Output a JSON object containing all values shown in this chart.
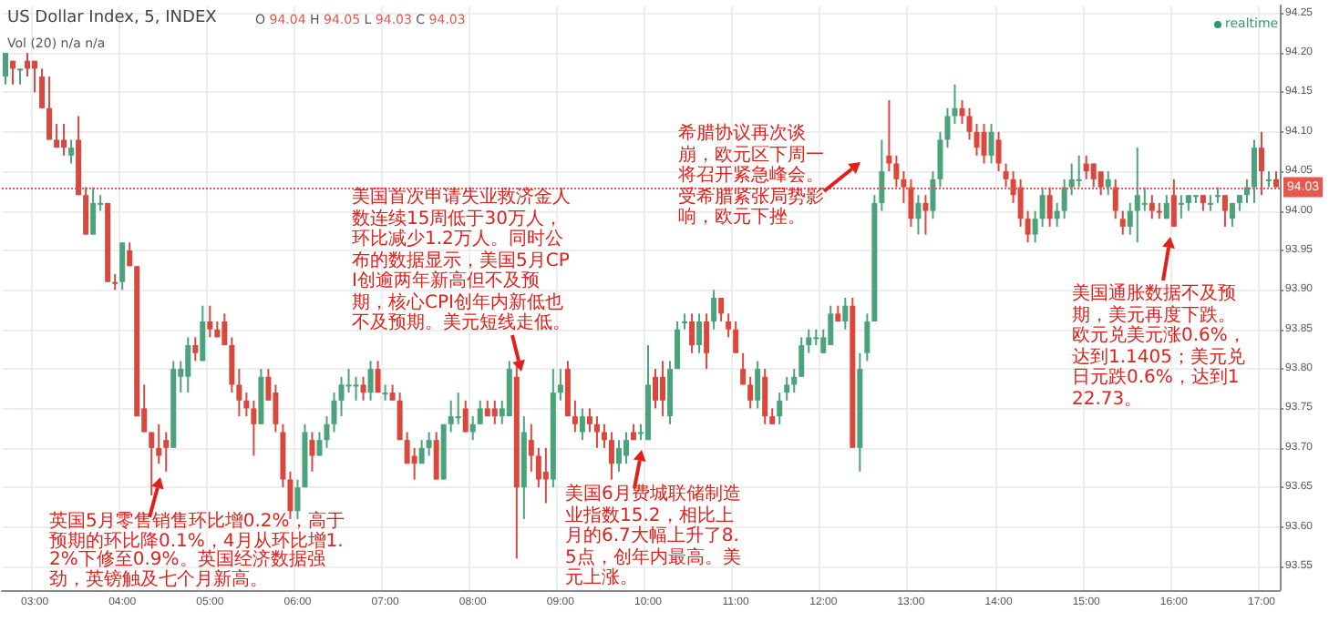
{
  "chart_data": {
    "type": "candlestick",
    "title": "US Dollar Index, 5, INDEX",
    "subtitle": "O 94.04 H 94.05 L 94.03 C 94.03",
    "annotations": [
      "Vol (20)  n/a  n/a",
      "realtime",
      "英国5月零售销售环比增0.2%，高于预期的环比降0.1%，4月从环比增1.2%下修至0.9%。英国经济数据强劲，英镑触及七个月新高。",
      "美国首次申请失业救济金人数连续15周低于30万人，环比减少1.2万人。同时公布的数据显示，美国5月CPI创逾两年新高但不及预期，核心CPI创年内新低也不及预期。美元短线走低。",
      "美国6月费城联储制造业指数15.2，相比上月的6.7大幅上升了8.5点，创年内最高。美元上涨。",
      "希腊协议再次谈崩，欧元区下周一将召开紧急峰会。受希腊紧张局势影响，欧元下挫。",
      "美国通胀数据不及预期，美元再度下跌。欧元兑美元涨0.6%，达到1.1405；美元兑日元跌0.6%，达到122.73。"
    ],
    "categories": [
      null,
      null,
      null,
      null,
      "03:00",
      null,
      null,
      null,
      null,
      null,
      null,
      null,
      null,
      null,
      null,
      null,
      "04:00",
      null,
      null,
      null,
      null,
      null,
      null,
      null,
      null,
      null,
      null,
      null,
      "05:00",
      null,
      null,
      null,
      null,
      null,
      null,
      null,
      null,
      null,
      null,
      null,
      "06:00",
      null,
      null,
      null,
      null,
      null,
      null,
      null,
      null,
      null,
      null,
      null,
      "07:00",
      null,
      null,
      null,
      null,
      null,
      null,
      null,
      null,
      null,
      null,
      null,
      "08:00",
      null,
      null,
      null,
      null,
      null,
      null,
      null,
      null,
      null,
      null,
      null,
      "09:00",
      null,
      null,
      null,
      null,
      null,
      null,
      null,
      null,
      null,
      null,
      null,
      "10:00",
      null,
      null,
      null,
      null,
      null,
      null,
      null,
      null,
      null,
      null,
      null,
      "11:00",
      null,
      null,
      null,
      null,
      null,
      null,
      null,
      null,
      null,
      null,
      null,
      "12:00",
      null,
      null,
      null,
      null,
      null,
      null,
      null,
      null,
      null,
      null,
      null,
      "13:00",
      null,
      null,
      null,
      null,
      null,
      null,
      null,
      null,
      null,
      null,
      null,
      "14:00",
      null,
      null,
      null,
      null,
      null,
      null,
      null,
      null,
      null,
      null,
      null,
      "15:00",
      null,
      null,
      null,
      null,
      null,
      null,
      null,
      null,
      null,
      null,
      null,
      "16:00",
      null,
      null,
      null,
      null,
      null,
      null,
      null,
      null,
      null,
      null,
      null,
      "17:00",
      null,
      null
    ],
    "ohlc": [
      [
        94.17,
        94.2,
        94.16,
        94.2
      ],
      [
        94.19,
        94.19,
        94.16,
        94.18
      ],
      [
        94.18,
        94.18,
        94.16,
        94.18
      ],
      [
        94.19,
        94.2,
        94.17,
        94.18
      ],
      [
        94.19,
        94.19,
        94.15,
        94.18
      ],
      [
        94.17,
        94.18,
        94.13,
        94.13
      ],
      [
        94.13,
        94.17,
        94.09,
        94.09
      ],
      [
        94.09,
        94.11,
        94.08,
        94.08
      ],
      [
        94.09,
        94.11,
        94.07,
        94.08
      ],
      [
        94.07,
        94.09,
        94.06,
        94.08
      ],
      [
        94.09,
        94.12,
        94.02,
        94.02
      ],
      [
        94.02,
        94.03,
        93.97,
        93.97
      ],
      [
        93.97,
        94.03,
        93.97,
        94.01
      ],
      [
        94.01,
        94.02,
        94.0,
        94.01
      ],
      [
        94.01,
        94.01,
        93.91,
        93.91
      ],
      [
        93.91,
        93.92,
        93.9,
        93.91
      ],
      [
        93.91,
        93.96,
        93.9,
        93.96
      ],
      [
        93.95,
        93.96,
        93.93,
        93.93
      ],
      [
        93.93,
        93.93,
        93.74,
        93.74
      ],
      [
        93.75,
        93.78,
        93.72,
        93.72
      ],
      [
        93.72,
        93.72,
        93.64,
        93.7
      ],
      [
        93.7,
        93.73,
        93.68,
        93.69
      ],
      [
        93.71,
        93.72,
        93.67,
        93.7
      ],
      [
        93.7,
        93.81,
        93.7,
        93.8
      ],
      [
        93.79,
        93.81,
        93.77,
        93.8
      ],
      [
        93.79,
        93.84,
        93.77,
        93.83
      ],
      [
        93.83,
        93.84,
        93.81,
        93.82
      ],
      [
        93.81,
        93.88,
        93.81,
        93.86
      ],
      [
        93.86,
        93.88,
        93.84,
        93.85
      ],
      [
        93.85,
        93.86,
        93.84,
        93.84
      ],
      [
        93.86,
        93.87,
        93.83,
        93.83
      ],
      [
        93.83,
        93.84,
        93.77,
        93.78
      ],
      [
        93.78,
        93.8,
        93.74,
        93.76
      ],
      [
        93.76,
        93.77,
        93.74,
        93.75
      ],
      [
        93.75,
        93.76,
        93.69,
        93.73
      ],
      [
        93.73,
        93.8,
        93.73,
        93.79
      ],
      [
        93.79,
        93.8,
        93.76,
        93.76
      ],
      [
        93.77,
        93.78,
        93.72,
        93.73
      ],
      [
        93.72,
        93.73,
        93.65,
        93.66
      ],
      [
        93.66,
        93.67,
        93.61,
        93.62
      ],
      [
        93.62,
        93.66,
        93.61,
        93.65
      ],
      [
        93.65,
        93.73,
        93.65,
        93.72
      ],
      [
        93.71,
        93.72,
        93.67,
        93.69
      ],
      [
        93.69,
        93.72,
        93.69,
        93.71
      ],
      [
        93.71,
        93.74,
        93.7,
        93.73
      ],
      [
        93.73,
        93.77,
        93.72,
        93.76
      ],
      [
        93.76,
        93.79,
        93.74,
        93.78
      ],
      [
        93.78,
        93.8,
        93.77,
        93.78
      ],
      [
        93.78,
        93.79,
        93.76,
        93.78
      ],
      [
        93.78,
        93.79,
        93.76,
        93.77
      ],
      [
        93.77,
        93.81,
        93.76,
        93.8
      ],
      [
        93.8,
        93.81,
        93.77,
        93.77
      ],
      [
        93.77,
        93.78,
        93.76,
        93.77
      ],
      [
        93.77,
        93.78,
        93.76,
        93.76
      ],
      [
        93.76,
        93.77,
        93.71,
        93.71
      ],
      [
        93.71,
        93.72,
        93.68,
        93.68
      ],
      [
        93.69,
        93.7,
        93.66,
        93.68
      ],
      [
        93.68,
        93.71,
        93.68,
        93.7
      ],
      [
        93.7,
        93.72,
        93.69,
        93.71
      ],
      [
        93.71,
        93.72,
        93.66,
        93.66
      ],
      [
        93.66,
        93.73,
        93.66,
        93.73
      ],
      [
        93.73,
        93.76,
        93.72,
        93.74
      ],
      [
        93.74,
        93.77,
        93.73,
        93.74
      ],
      [
        93.75,
        93.76,
        93.72,
        93.72
      ],
      [
        93.72,
        93.74,
        93.71,
        93.73
      ],
      [
        93.73,
        93.76,
        93.73,
        93.75
      ],
      [
        93.75,
        93.76,
        93.74,
        93.74
      ],
      [
        93.75,
        93.76,
        93.73,
        93.74
      ],
      [
        93.74,
        93.76,
        93.73,
        93.75
      ],
      [
        93.74,
        93.81,
        93.74,
        93.8
      ],
      [
        93.79,
        93.81,
        93.56,
        93.65
      ],
      [
        93.65,
        93.74,
        93.61,
        93.72
      ],
      [
        93.71,
        93.73,
        93.67,
        93.69
      ],
      [
        93.69,
        93.7,
        93.65,
        93.66
      ],
      [
        93.67,
        93.7,
        93.63,
        93.66
      ],
      [
        93.66,
        93.8,
        93.65,
        93.77
      ],
      [
        93.77,
        93.8,
        93.76,
        93.78
      ],
      [
        93.8,
        93.81,
        93.74,
        93.74
      ],
      [
        93.74,
        93.76,
        93.72,
        93.73
      ],
      [
        93.72,
        93.75,
        93.71,
        93.74
      ],
      [
        93.74,
        93.75,
        93.72,
        93.73
      ],
      [
        93.73,
        93.74,
        93.7,
        93.72
      ],
      [
        93.72,
        93.73,
        93.7,
        93.71
      ],
      [
        93.71,
        93.72,
        93.66,
        93.68
      ],
      [
        93.68,
        93.71,
        93.67,
        93.7
      ],
      [
        93.69,
        93.72,
        93.68,
        93.71
      ],
      [
        93.72,
        93.73,
        93.71,
        93.71
      ],
      [
        93.72,
        93.73,
        93.71,
        93.72
      ],
      [
        93.71,
        93.83,
        93.71,
        93.78
      ],
      [
        93.79,
        93.8,
        93.75,
        93.76
      ],
      [
        93.79,
        93.81,
        93.74,
        93.76
      ],
      [
        93.74,
        93.81,
        93.73,
        93.8
      ],
      [
        93.8,
        93.86,
        93.8,
        93.85
      ],
      [
        93.86,
        93.87,
        93.85,
        93.86
      ],
      [
        93.86,
        93.87,
        93.82,
        93.83
      ],
      [
        93.83,
        93.87,
        93.82,
        93.86
      ],
      [
        93.86,
        93.87,
        93.8,
        93.82
      ],
      [
        93.86,
        93.9,
        93.85,
        93.89
      ],
      [
        93.89,
        93.89,
        93.86,
        93.87
      ],
      [
        93.86,
        93.87,
        93.84,
        93.85
      ],
      [
        93.85,
        93.86,
        93.82,
        93.82
      ],
      [
        93.8,
        93.82,
        93.78,
        93.78
      ],
      [
        93.78,
        93.79,
        93.75,
        93.76
      ],
      [
        93.76,
        93.81,
        93.75,
        93.8
      ],
      [
        93.79,
        93.8,
        93.73,
        93.74
      ],
      [
        93.74,
        93.75,
        93.73,
        93.73
      ],
      [
        93.74,
        93.77,
        93.73,
        93.76
      ],
      [
        93.77,
        93.79,
        93.76,
        93.78
      ],
      [
        93.78,
        93.8,
        93.77,
        93.79
      ],
      [
        93.79,
        93.84,
        93.79,
        93.83
      ],
      [
        93.83,
        93.85,
        93.82,
        93.84
      ],
      [
        93.84,
        93.85,
        93.83,
        93.84
      ],
      [
        93.82,
        93.85,
        93.82,
        93.84
      ],
      [
        93.83,
        93.88,
        93.83,
        93.87
      ],
      [
        93.87,
        93.88,
        93.86,
        93.86
      ],
      [
        93.86,
        93.89,
        93.85,
        93.88
      ],
      [
        93.88,
        93.89,
        93.7,
        93.7
      ],
      [
        93.7,
        93.82,
        93.67,
        93.8
      ],
      [
        93.82,
        93.87,
        93.81,
        93.86
      ],
      [
        93.86,
        94.02,
        93.86,
        94.01
      ],
      [
        94.01,
        94.09,
        94.0,
        94.05
      ],
      [
        94.07,
        94.14,
        94.05,
        94.06
      ],
      [
        94.06,
        94.07,
        94.03,
        94.04
      ],
      [
        94.04,
        94.05,
        94.01,
        94.03
      ],
      [
        94.03,
        94.04,
        93.98,
        93.99
      ],
      [
        93.99,
        94.02,
        93.97,
        94.01
      ],
      [
        94.01,
        94.02,
        93.97,
        94.0
      ],
      [
        94.0,
        94.05,
        93.99,
        94.04
      ],
      [
        94.04,
        94.1,
        94.03,
        94.09
      ],
      [
        94.09,
        94.13,
        94.08,
        94.12
      ],
      [
        94.12,
        94.16,
        94.11,
        94.13
      ],
      [
        94.13,
        94.14,
        94.11,
        94.12
      ],
      [
        94.12,
        94.13,
        94.09,
        94.1
      ],
      [
        94.1,
        94.11,
        94.07,
        94.08
      ],
      [
        94.1,
        94.11,
        94.06,
        94.07
      ],
      [
        94.07,
        94.11,
        94.06,
        94.1
      ],
      [
        94.09,
        94.1,
        94.05,
        94.06
      ],
      [
        94.05,
        94.06,
        94.03,
        94.04
      ],
      [
        94.04,
        94.05,
        94.01,
        94.02
      ],
      [
        94.03,
        94.04,
        93.98,
        93.99
      ],
      [
        93.99,
        94.0,
        93.96,
        93.97
      ],
      [
        93.97,
        94.0,
        93.96,
        93.99
      ],
      [
        93.99,
        94.03,
        93.98,
        94.02
      ],
      [
        94.02,
        94.03,
        93.98,
        93.99
      ],
      [
        93.99,
        94.01,
        93.98,
        94.0
      ],
      [
        94.0,
        94.04,
        93.99,
        94.03
      ],
      [
        94.03,
        94.06,
        94.02,
        94.04
      ],
      [
        94.04,
        94.07,
        94.03,
        94.04
      ],
      [
        94.06,
        94.07,
        94.04,
        94.05
      ],
      [
        94.06,
        94.06,
        94.03,
        94.04
      ],
      [
        94.05,
        94.05,
        94.02,
        94.03
      ],
      [
        94.03,
        94.05,
        94.02,
        94.04
      ],
      [
        94.03,
        94.04,
        93.99,
        94.0
      ],
      [
        93.99,
        94.0,
        93.97,
        93.98
      ],
      [
        93.98,
        94.01,
        93.97,
        94.0
      ],
      [
        94.0,
        94.08,
        93.96,
        94.02
      ],
      [
        94.01,
        94.03,
        94.0,
        94.01
      ],
      [
        94.01,
        94.02,
        93.99,
        94.0
      ],
      [
        94.0,
        94.01,
        93.99,
        94.0
      ],
      [
        93.99,
        94.02,
        93.99,
        94.01
      ],
      [
        94.02,
        94.04,
        93.98,
        93.98
      ],
      [
        94.01,
        94.02,
        93.99,
        94.01
      ],
      [
        94.01,
        94.02,
        94.0,
        94.02
      ],
      [
        94.02,
        94.02,
        94.01,
        94.02
      ],
      [
        94.02,
        94.02,
        94.0,
        94.01
      ],
      [
        94.01,
        94.02,
        94.0,
        94.01
      ],
      [
        94.02,
        94.03,
        94.01,
        94.02
      ],
      [
        94.02,
        94.02,
        93.98,
        94.0
      ],
      [
        93.99,
        94.01,
        93.98,
        94.01
      ],
      [
        94.01,
        94.02,
        94.0,
        94.02
      ],
      [
        94.02,
        94.04,
        94.01,
        94.03
      ],
      [
        94.03,
        94.09,
        94.01,
        94.08
      ],
      [
        94.08,
        94.1,
        94.02,
        94.05
      ],
      [
        94.04,
        94.05,
        94.03,
        94.04
      ],
      [
        94.04,
        94.05,
        94.03,
        94.03
      ]
    ],
    "colors": [
      "#4ba27b",
      "#d9473d",
      "#4ba27b",
      "#d9473d",
      "#d9473d",
      "#d9473d",
      "#d9473d",
      "#d9473d",
      "#d9473d",
      "#4ba27b",
      "#d9473d",
      "#d9473d",
      "#4ba27b",
      "#4ba27b",
      "#d9473d",
      "#d9473d",
      "#4ba27b",
      "#d9473d",
      "#d9473d",
      "#d9473d",
      "#d9473d",
      "#d9473d",
      "#d9473d",
      "#4ba27b",
      "#4ba27b",
      "#4ba27b",
      "#d9473d",
      "#4ba27b",
      "#d9473d",
      "#d9473d",
      "#d9473d",
      "#d9473d",
      "#d9473d",
      "#d9473d",
      "#d9473d",
      "#4ba27b",
      "#d9473d",
      "#d9473d",
      "#d9473d",
      "#d9473d",
      "#4ba27b",
      "#4ba27b",
      "#d9473d",
      "#4ba27b",
      "#4ba27b",
      "#4ba27b",
      "#4ba27b",
      "#4ba27b",
      "#4ba27b",
      "#d9473d",
      "#4ba27b",
      "#d9473d",
      "#4ba27b",
      "#d9473d",
      "#d9473d",
      "#d9473d",
      "#d9473d",
      "#4ba27b",
      "#4ba27b",
      "#d9473d",
      "#4ba27b",
      "#4ba27b",
      "#4ba27b",
      "#d9473d",
      "#4ba27b",
      "#4ba27b",
      "#d9473d",
      "#d9473d",
      "#4ba27b",
      "#4ba27b",
      "#d9473d",
      "#4ba27b",
      "#d9473d",
      "#d9473d",
      "#d9473d",
      "#4ba27b",
      "#4ba27b",
      "#d9473d",
      "#d9473d",
      "#4ba27b",
      "#d9473d",
      "#d9473d",
      "#d9473d",
      "#d9473d",
      "#4ba27b",
      "#4ba27b",
      "#d9473d",
      "#4ba27b",
      "#4ba27b",
      "#d9473d",
      "#d9473d",
      "#4ba27b",
      "#4ba27b",
      "#4ba27b",
      "#d9473d",
      "#4ba27b",
      "#d9473d",
      "#4ba27b",
      "#d9473d",
      "#d9473d",
      "#d9473d",
      "#d9473d",
      "#d9473d",
      "#4ba27b",
      "#d9473d",
      "#d9473d",
      "#4ba27b",
      "#4ba27b",
      "#4ba27b",
      "#4ba27b",
      "#4ba27b",
      "#4ba27b",
      "#4ba27b",
      "#4ba27b",
      "#d9473d",
      "#4ba27b",
      "#d9473d",
      "#4ba27b",
      "#4ba27b",
      "#4ba27b",
      "#4ba27b",
      "#d9473d",
      "#d9473d",
      "#d9473d",
      "#d9473d",
      "#4ba27b",
      "#d9473d",
      "#4ba27b",
      "#4ba27b",
      "#4ba27b",
      "#4ba27b",
      "#d9473d",
      "#d9473d",
      "#d9473d",
      "#d9473d",
      "#4ba27b",
      "#d9473d",
      "#d9473d",
      "#d9473d",
      "#d9473d",
      "#d9473d",
      "#4ba27b",
      "#4ba27b",
      "#d9473d",
      "#4ba27b",
      "#4ba27b",
      "#4ba27b",
      "#4ba27b",
      "#d9473d",
      "#d9473d",
      "#d9473d",
      "#4ba27b",
      "#d9473d",
      "#d9473d",
      "#4ba27b",
      "#4ba27b",
      "#4ba27b",
      "#d9473d",
      "#d9473d",
      "#4ba27b",
      "#d9473d",
      "#4ba27b",
      "#4ba27b",
      "#4ba27b",
      "#d9473d",
      "#4ba27b",
      "#4ba27b",
      "#d9473d",
      "#4ba27b",
      "#4ba27b",
      "#4ba27b",
      "#4ba27b",
      "#d9473d",
      "#4ba27b",
      "#d9473d"
    ],
    "ylim": [
      93.52,
      94.26
    ],
    "yticks": [
      93.55,
      {
        "value": 93.6,
        "label": "93.60"
      },
      93.65,
      {
        "value": 93.7,
        "label": "93.70"
      },
      93.75,
      {
        "value": 93.8,
        "label": "93.80"
      },
      93.85,
      {
        "value": 93.9,
        "label": "93.90"
      },
      93.95,
      {
        "value": 94,
        "label": "94.00"
      },
      94.05,
      {
        "value": 94.1,
        "label": "94.10"
      },
      94.15,
      {
        "value": 94.2,
        "label": "94.20"
      },
      94.25
    ],
    "ref_lines": [
      {
        "axis": "y",
        "value": 94.03,
        "label": "94.03",
        "color": "#e8574d",
        "line_style": "dotted"
      }
    ],
    "grid": true
  }
}
